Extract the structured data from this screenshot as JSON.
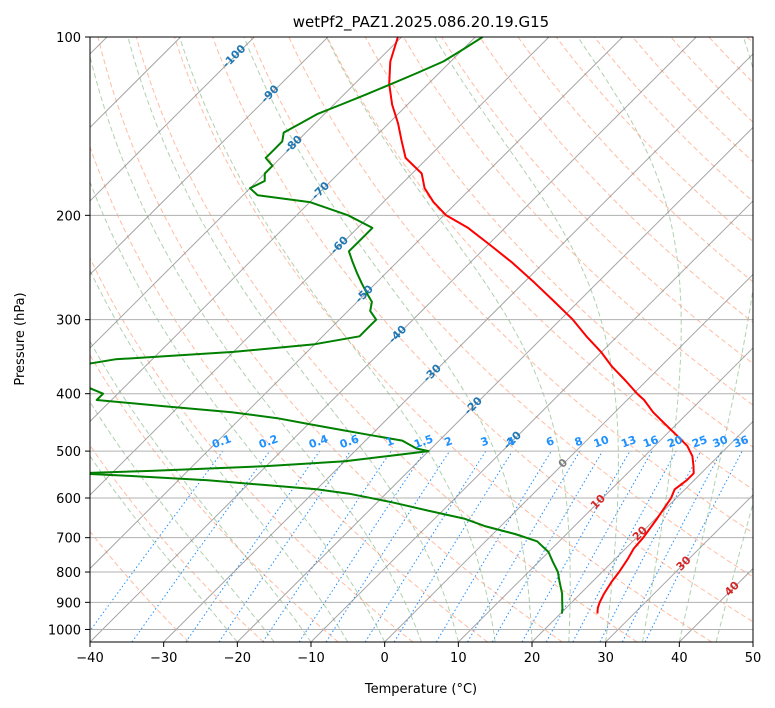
{
  "chart_data": {
    "type": "line",
    "title": "wetPf2_PAZ1.2025.086.20.19.G15",
    "xlabel": "Temperature (°C)",
    "ylabel": "Pressure (hPa)",
    "xlim": [
      -40,
      50
    ],
    "ylim": [
      1050,
      100
    ],
    "y_scale": "log",
    "x_ticks": [
      "−40",
      "−30",
      "−20",
      "−10",
      "0",
      "10",
      "20",
      "30",
      "40",
      "50"
    ],
    "y_ticks": [
      "100",
      "200",
      "300",
      "400",
      "500",
      "600",
      "700",
      "800",
      "900",
      "1000"
    ],
    "y_tick_values": [
      100,
      200,
      300,
      400,
      500,
      600,
      700,
      800,
      900,
      1000
    ],
    "grid": true,
    "skew": 35,
    "colors": {
      "temperature": "#ff0000",
      "dewpoint": "#008000",
      "isotherm": "#7f7f7f",
      "dry_adiabat": "#ffa07a",
      "moist_adiabat": "#8fbc8f",
      "mixing_ratio": "#1e90ff",
      "iso_label_cold": "#1f77b4",
      "iso_label_warm": "#d62728",
      "iso_label_zero": "#7f7f7f"
    },
    "series": [
      {
        "key": "temperature",
        "pressure": [
          940,
          920,
          900,
          870,
          830,
          800,
          760,
          730,
          700,
          650,
          600,
          580,
          560,
          545,
          530,
          510,
          490,
          470,
          450,
          430,
          410,
          400,
          380,
          360,
          340,
          320,
          300,
          280,
          260,
          240,
          225,
          210,
          200,
          190,
          180,
          170,
          160,
          150,
          140,
          130,
          120,
          110,
          100
        ],
        "temperature": [
          25,
          24.3,
          23.8,
          23.2,
          22.6,
          22.3,
          21.7,
          21.1,
          20.9,
          20.2,
          19.3,
          18.6,
          19,
          19,
          18,
          16.5,
          14.4,
          11.5,
          8.4,
          5.2,
          2.3,
          0.5,
          -2.9,
          -6.6,
          -10.1,
          -14.2,
          -18.3,
          -23.2,
          -28.5,
          -34.4,
          -39.5,
          -45,
          -49.7,
          -53.2,
          -56.3,
          -58.7,
          -63,
          -65.8,
          -68.7,
          -72.1,
          -75.3,
          -78.2,
          -80.5
        ]
      },
      {
        "key": "dewpoint",
        "pressure": [
          940,
          920,
          900,
          870,
          830,
          800,
          770,
          740,
          710,
          690,
          670,
          650,
          630,
          610,
          590,
          580,
          570,
          560,
          550,
          545,
          540,
          530,
          520,
          510,
          500,
          495,
          490,
          480,
          470,
          460,
          450,
          440,
          430,
          420,
          410,
          400,
          390,
          380,
          370,
          360,
          350,
          340,
          330,
          320,
          310,
          300,
          290,
          280,
          270,
          260,
          250,
          240,
          230,
          220,
          210,
          200,
          190,
          185,
          180,
          175,
          170,
          165,
          160,
          155,
          150,
          145,
          140,
          135,
          130,
          125,
          120,
          115,
          110,
          105,
          100
        ],
        "temperature": [
          20.2,
          19.5,
          18.7,
          17.5,
          15.5,
          14,
          12,
          10,
          7,
          3,
          -2,
          -6,
          -12,
          -18,
          -25,
          -30,
          -38,
          -46,
          -58,
          -65,
          -55,
          -40,
          -30,
          -25,
          -20,
          -22,
          -23,
          -25,
          -30,
          -35,
          -40,
          -45,
          -52,
          -62,
          -72,
          -72,
          -75,
          -78,
          -80,
          -80,
          -75,
          -60,
          -50,
          -45,
          -45,
          -45,
          -47,
          -48,
          -50,
          -52,
          -54,
          -56,
          -58,
          -58,
          -58,
          -63,
          -70,
          -78,
          -80,
          -79,
          -80,
          -80,
          -82,
          -82,
          -82,
          -83,
          -82,
          -81,
          -79,
          -77,
          -75,
          -73,
          -71,
          -70,
          -69
        ]
      }
    ],
    "isotherm_labels": [
      "-100",
      "-90",
      "-80",
      "-70",
      "-60",
      "-50",
      "-40",
      "-30",
      "-20",
      "-10",
      "0",
      "10",
      "20",
      "30",
      "40"
    ],
    "isotherm_label_values": [
      -100,
      -90,
      -80,
      -70,
      -60,
      -50,
      -40,
      -30,
      -20,
      -10,
      0,
      10,
      20,
      30,
      40
    ],
    "isotherm_label_pressures": [
      108,
      125,
      152,
      182,
      225,
      272,
      318,
      370,
      420,
      480,
      525,
      610,
      690,
      775,
      855
    ],
    "mixing_ratio_labels": [
      "0.1",
      "0.2",
      "0.4",
      "0.6",
      "1",
      "1.5",
      "2",
      "3",
      "4",
      "6",
      "8",
      "10",
      "13",
      "16",
      "20",
      "25",
      "30",
      "36"
    ],
    "mixing_ratio_values": [
      0.1,
      0.2,
      0.4,
      0.6,
      1,
      1.5,
      2,
      3,
      4,
      6,
      8,
      10,
      13,
      16,
      20,
      25,
      30,
      36
    ]
  }
}
